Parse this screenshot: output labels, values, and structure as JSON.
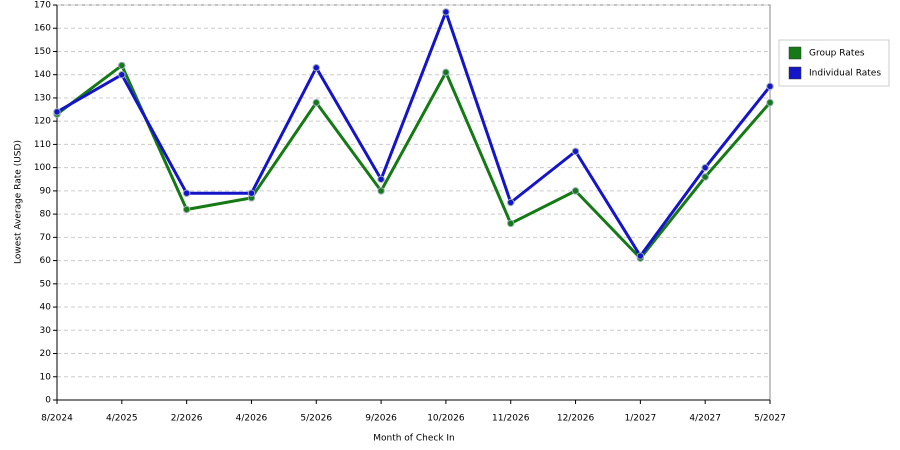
{
  "chart_data": {
    "type": "line",
    "x_label": "Month of Check In",
    "y_label": "Lowest Average Rate (USD)",
    "categories": [
      "8/2024",
      "4/2025",
      "2/2026",
      "4/2026",
      "5/2026",
      "9/2026",
      "10/2026",
      "11/2026",
      "12/2026",
      "1/2027",
      "4/2027",
      "5/2027"
    ],
    "series": [
      {
        "name": "Group Rates",
        "color": "#157a15",
        "values": [
          123,
          144,
          82,
          87,
          128,
          90,
          141,
          76,
          90,
          61,
          96,
          128
        ]
      },
      {
        "name": "Individual Rates",
        "color": "#1515c8",
        "values": [
          124,
          140,
          89,
          89,
          143,
          95,
          167,
          85,
          107,
          62,
          100,
          135
        ]
      }
    ],
    "ylim": [
      0,
      170
    ],
    "yticks": [
      0,
      10,
      20,
      30,
      40,
      50,
      60,
      70,
      80,
      90,
      100,
      110,
      120,
      130,
      140,
      150,
      160,
      170
    ],
    "grid": true,
    "legend": "right"
  }
}
